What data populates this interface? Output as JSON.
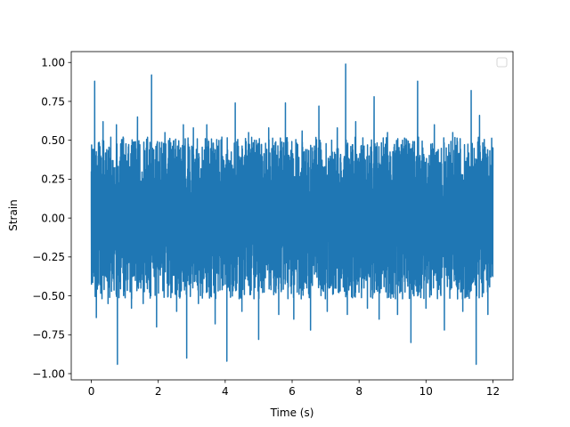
{
  "chart_data": {
    "type": "line",
    "title": "",
    "xlabel": "Time (s)",
    "ylabel": "Strain",
    "xlim": [
      -0.6,
      12.6
    ],
    "ylim": [
      -1.04,
      1.07
    ],
    "x_ticks": [
      0,
      2,
      4,
      6,
      8,
      10,
      12
    ],
    "x_tick_labels": [
      "0",
      "2",
      "4",
      "6",
      "8",
      "10",
      "12"
    ],
    "y_ticks": [
      -1.0,
      -0.75,
      -0.5,
      -0.25,
      0.0,
      0.25,
      0.5,
      0.75,
      1.0
    ],
    "y_tick_labels": [
      "−1.00",
      "−0.75",
      "−0.50",
      "−0.25",
      "0.00",
      "0.25",
      "0.50",
      "0.75",
      "1.00"
    ],
    "grid": false,
    "legend": {
      "location": "upper right",
      "entries": []
    },
    "series": [
      {
        "color": "#1f77b4",
        "x_range": [
          0,
          12
        ],
        "description": "noise-like strain signal, bulk amplitude about ±0.5, peaks approx 1.0 / -0.95",
        "x": [
          0.0,
          0.05,
          0.1,
          0.15,
          0.35,
          0.5,
          0.75,
          0.78,
          0.95,
          1.2,
          1.38,
          1.55,
          1.8,
          1.95,
          2.2,
          2.55,
          2.75,
          2.85,
          3.05,
          3.2,
          3.45,
          3.7,
          3.9,
          4.05,
          4.3,
          4.5,
          4.7,
          5.0,
          5.3,
          5.6,
          5.8,
          6.05,
          6.3,
          6.55,
          6.8,
          7.05,
          7.35,
          7.6,
          7.65,
          7.9,
          8.25,
          8.45,
          8.6,
          8.85,
          9.15,
          9.3,
          9.55,
          9.75,
          10.0,
          10.25,
          10.55,
          10.8,
          11.1,
          11.35,
          11.5,
          11.6,
          11.85,
          12.0
        ],
        "y": [
          0.3,
          -0.35,
          0.88,
          -0.64,
          0.62,
          -0.55,
          0.6,
          -0.94,
          0.52,
          -0.58,
          0.65,
          -0.55,
          0.92,
          -0.7,
          0.55,
          -0.6,
          0.6,
          -0.9,
          0.58,
          -0.55,
          0.6,
          -0.68,
          0.52,
          -0.92,
          0.74,
          -0.6,
          0.55,
          -0.78,
          0.58,
          -0.62,
          0.74,
          -0.65,
          0.56,
          -0.72,
          0.72,
          -0.6,
          0.58,
          0.99,
          -0.62,
          0.62,
          -0.58,
          0.78,
          -0.65,
          0.55,
          -0.62,
          0.5,
          -0.8,
          0.88,
          -0.58,
          0.6,
          -0.72,
          0.55,
          -0.6,
          0.82,
          -0.94,
          0.66,
          -0.62,
          0.45
        ]
      }
    ]
  }
}
